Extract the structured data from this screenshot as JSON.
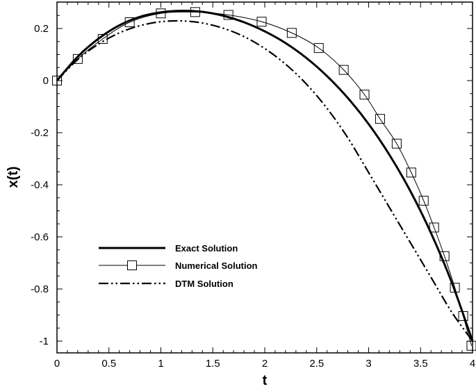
{
  "chart_data": {
    "type": "line",
    "title": "",
    "xlabel": "t",
    "ylabel": "x(t)",
    "xlim": [
      0,
      4
    ],
    "ylim": [
      -1.05,
      0.3
    ],
    "x_ticks": [
      0,
      0.5,
      1,
      1.5,
      2,
      2.5,
      3,
      3.5,
      4
    ],
    "x_tick_labels": [
      "0",
      "0.5",
      "1",
      "1.5",
      "2",
      "2.5",
      "3",
      "3.5",
      "4"
    ],
    "y_ticks": [
      0.2,
      0,
      -0.2,
      -0.4,
      -0.6,
      -0.8,
      -1
    ],
    "y_tick_labels": [
      "0.2",
      "0",
      "-0.2",
      "-0.4",
      "-0.6",
      "-0.8",
      "-1"
    ],
    "grid": false,
    "legend_position": "lower-left",
    "series": [
      {
        "name": "Exact Solution",
        "style": "thick-solid",
        "color": "#000000",
        "x": [
          0,
          0.2,
          0.4,
          0.6,
          0.8,
          1.0,
          1.2,
          1.4,
          1.6,
          1.8,
          2.0,
          2.2,
          2.4,
          2.6,
          2.8,
          3.0,
          3.2,
          3.4,
          3.6,
          3.8,
          4.0
        ],
        "values": [
          0.0,
          0.092,
          0.161,
          0.212,
          0.245,
          0.262,
          0.268,
          0.264,
          0.249,
          0.224,
          0.189,
          0.144,
          0.087,
          0.017,
          -0.067,
          -0.167,
          -0.285,
          -0.423,
          -0.585,
          -0.775,
          -1.0
        ]
      },
      {
        "name": "Numerical Solution",
        "style": "thin-solid-square-markers",
        "color": "#000000",
        "x": [
          0,
          0.2,
          0.44,
          0.7,
          1.0,
          1.33,
          1.65,
          1.97,
          2.26,
          2.52,
          2.76,
          2.96,
          3.11,
          3.27,
          3.41,
          3.53,
          3.63,
          3.73,
          3.83,
          3.91,
          3.99
        ],
        "values": [
          0.0,
          0.083,
          0.16,
          0.224,
          0.258,
          0.263,
          0.252,
          0.226,
          0.183,
          0.125,
          0.041,
          -0.054,
          -0.147,
          -0.242,
          -0.353,
          -0.461,
          -0.564,
          -0.674,
          -0.795,
          -0.904,
          -1.018
        ]
      },
      {
        "name": "DTM Solution",
        "style": "dash-dot-dot",
        "color": "#000000",
        "x": [
          0,
          0.2,
          0.4,
          0.6,
          0.8,
          1.0,
          1.2,
          1.4,
          1.6,
          1.8,
          2.0,
          2.2,
          2.4,
          2.6,
          2.8,
          3.0,
          3.2,
          3.4,
          3.6,
          3.8,
          4.0
        ],
        "values": [
          0.0,
          0.081,
          0.14,
          0.183,
          0.211,
          0.226,
          0.229,
          0.221,
          0.201,
          0.169,
          0.123,
          0.063,
          -0.013,
          -0.107,
          -0.22,
          -0.353,
          -0.487,
          -0.621,
          -0.755,
          -0.889,
          -1.0
        ]
      }
    ]
  }
}
